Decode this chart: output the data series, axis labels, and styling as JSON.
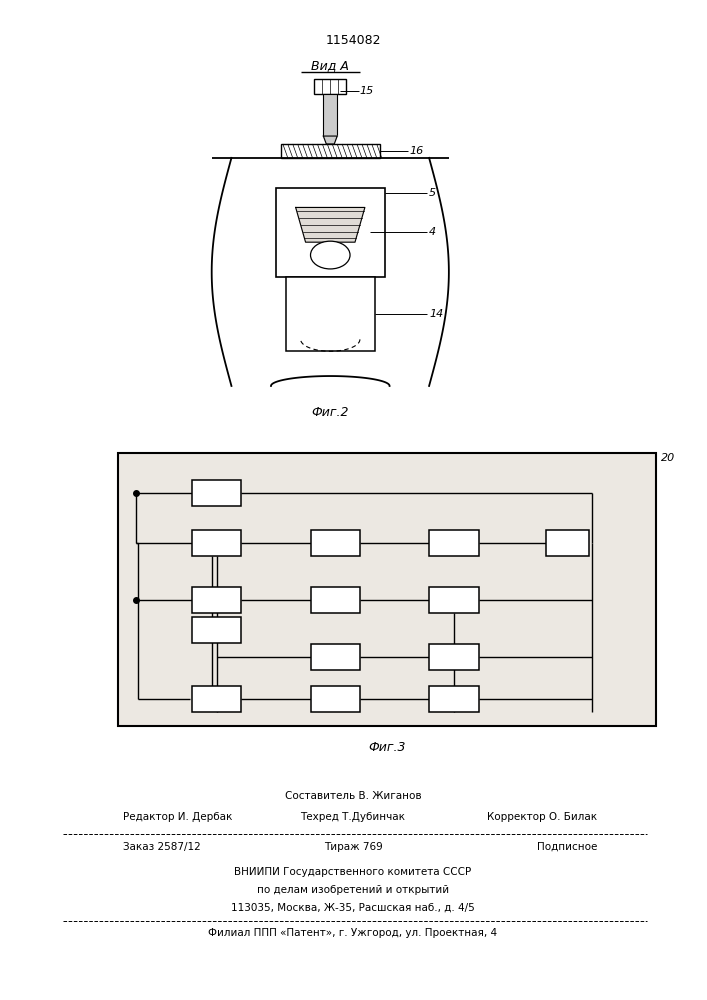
{
  "patent_number": "1154082",
  "fig2_label": "Фиг.2",
  "fig3_label": "Фиг.3",
  "vid_a_label": "Вид A",
  "bg_color": "#f0ede8",
  "footer": {
    "comp": "Составитель В. Жиганов",
    "editor": "Редактор И. Дербак",
    "tech": "Техред Т.Дубинчак",
    "corr": "Корректор О. Билак",
    "order": "Заказ 2587/12",
    "print": "Тираж 769",
    "sub": "Подписное",
    "inst1": "ВНИИПИ Государственного комитета СССР",
    "inst2": "по делам изобретений и открытий",
    "inst3": "113035, Москва, Ж-35, Расшская наб., д. 4/5",
    "branch": "Филиал ППП «Патент», г. Ужгород, ул. Проектная, 4"
  }
}
